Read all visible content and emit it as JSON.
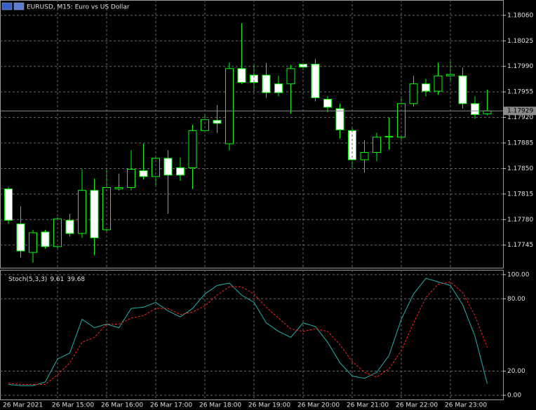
{
  "chart_data": [
    {
      "type": "candlestick",
      "title": "EURUSD, M15:  Euro vs US Dollar",
      "open": [
        1.17822,
        1.17774,
        1.17735,
        1.17763,
        1.17743,
        1.17779,
        1.17761,
        1.1782,
        1.17766,
        1.17822,
        1.17824,
        1.17847,
        1.17839,
        1.17864,
        1.17851,
        1.17851,
        1.17902,
        1.17916,
        1.17884,
        1.17987,
        1.17978,
        1.17978,
        1.17966,
        1.17966,
        1.17993,
        1.17993,
        1.17945,
        1.17932,
        1.17902,
        1.17862,
        1.17872,
        1.17893,
        1.17893,
        1.17939,
        1.17966,
        1.17956,
        1.17977,
        1.17977,
        1.17939,
        1.17925
      ],
      "high": [
        1.17825,
        1.17798,
        1.17766,
        1.17766,
        1.17783,
        1.17788,
        1.17849,
        1.17836,
        1.17851,
        1.17843,
        1.17875,
        1.17884,
        1.17868,
        1.17875,
        1.17865,
        1.1791,
        1.17925,
        1.17937,
        1.17995,
        1.18049,
        1.17993,
        1.17995,
        1.17977,
        1.17992,
        1.17995,
        1.18,
        1.17949,
        1.17939,
        1.17908,
        1.17889,
        1.17899,
        1.1792,
        1.17949,
        1.17977,
        1.17973,
        1.17995,
        1.17997,
        1.17988,
        1.17949,
        1.17958
      ],
      "low": [
        1.17774,
        1.17728,
        1.17721,
        1.1774,
        1.1774,
        1.17757,
        1.17755,
        1.17731,
        1.17764,
        1.1782,
        1.1782,
        1.17835,
        1.17827,
        1.17788,
        1.17833,
        1.17822,
        1.17899,
        1.17899,
        1.17875,
        1.17966,
        1.17956,
        1.17947,
        1.17949,
        1.17925,
        1.17985,
        1.17942,
        1.17927,
        1.17891,
        1.17851,
        1.17844,
        1.1786,
        1.17876,
        1.17887,
        1.17935,
        1.17949,
        1.17951,
        1.17968,
        1.17932,
        1.17918,
        1.17923
      ],
      "close": [
        1.17779,
        1.17737,
        1.17762,
        1.17743,
        1.17781,
        1.17761,
        1.1782,
        1.17755,
        1.17824,
        1.17824,
        1.17849,
        1.17839,
        1.17864,
        1.17841,
        1.17841,
        1.17902,
        1.17917,
        1.17912,
        1.17987,
        1.17968,
        1.17968,
        1.17954,
        1.17954,
        1.17987,
        1.17989,
        1.17947,
        1.17934,
        1.17903,
        1.17862,
        1.17872,
        1.17893,
        1.17894,
        1.17939,
        1.17966,
        1.17956,
        1.17977,
        1.17979,
        1.17939,
        1.17924,
        1.17929
      ],
      "ylim": [
        1.17714,
        1.18081
      ],
      "yticks": [
        {
          "value": 1.1806,
          "label": "1.18060"
        },
        1.18025,
        {
          "value": 1.1799,
          "label": "1.17990"
        },
        1.17955,
        {
          "value": 1.1792,
          "label": "1.17920"
        },
        1.17885,
        {
          "value": 1.1785,
          "label": "1.17850"
        },
        1.17815,
        {
          "value": 1.1778,
          "label": "1.17780"
        },
        1.17745
      ],
      "up_color": "#000000",
      "down_color": "#ffffff",
      "line_color": "#00ff00",
      "grid": true
    },
    {
      "type": "line",
      "title": "Stoch(5,3,3)",
      "categories": [
        "26 Mar 2021",
        null,
        null,
        null,
        "26 Mar 15:00",
        null,
        null,
        null,
        "26 Mar 16:00",
        null,
        null,
        null,
        "26 Mar 17:00",
        null,
        null,
        null,
        "26 Mar 18:00",
        null,
        null,
        null,
        "26 Mar 19:00",
        null,
        null,
        null,
        "26 Mar 20:00",
        null,
        null,
        null,
        "26 Mar 21:00",
        null,
        null,
        null,
        "26 Mar 22:00",
        null,
        null,
        null,
        "26 Mar 23:00",
        null,
        null,
        null
      ],
      "series": [
        {
          "color": "#20b2aa",
          "values": [
            9,
            8,
            8,
            11,
            30,
            35,
            63,
            56,
            59,
            56,
            72,
            73,
            77,
            70,
            65,
            72,
            84,
            91,
            93,
            83,
            77,
            60,
            53,
            48,
            60,
            57,
            44,
            27,
            16,
            14,
            19,
            33,
            63,
            84,
            97,
            94,
            91,
            75,
            49,
            9.61
          ]
        },
        {
          "color": "#ff2020",
          "dashed": true,
          "values": [
            10,
            9,
            9,
            9,
            17,
            27,
            44,
            48,
            59,
            59,
            64,
            66,
            72,
            72,
            67,
            69,
            74,
            83,
            90,
            90,
            84,
            73,
            64,
            55,
            53,
            55,
            53,
            42,
            28,
            19,
            15,
            22,
            37,
            60,
            81,
            92,
            94,
            85,
            66,
            39.68
          ]
        }
      ],
      "ylim": [
        -3.5,
        104
      ],
      "yticks": [
        {
          "value": 100,
          "label": "100.00"
        },
        {
          "value": 80,
          "label": "80.00"
        },
        {
          "value": 20,
          "label": "20.00"
        },
        {
          "value": 0,
          "label": "0.00"
        }
      ],
      "grid": true
    }
  ]
}
